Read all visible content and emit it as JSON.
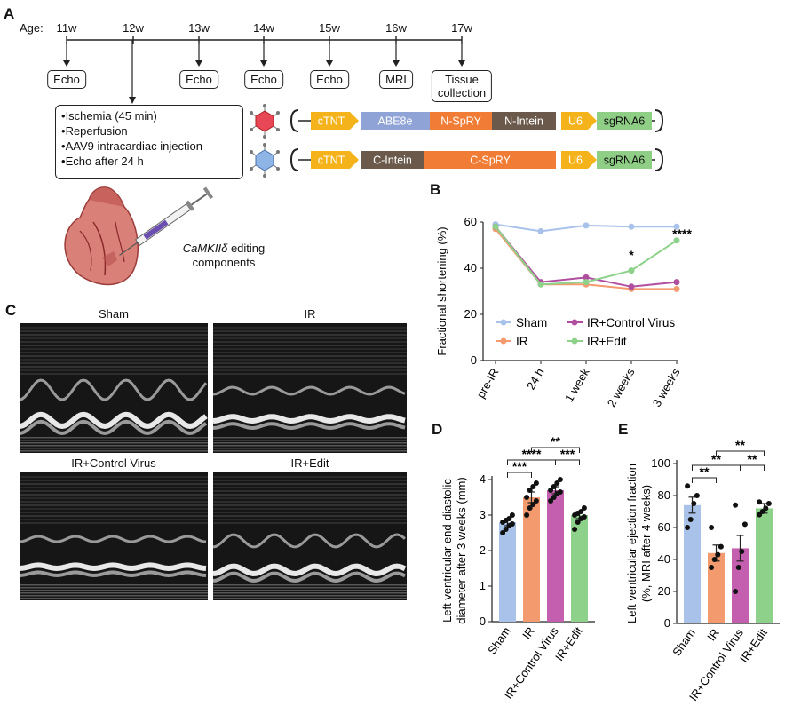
{
  "panels": {
    "a": "A",
    "b": "B",
    "c": "C",
    "d": "D",
    "e": "E"
  },
  "timeline": {
    "age_label": "Age:",
    "weeks": [
      "11w",
      "12w",
      "13w",
      "14w",
      "15w",
      "16w",
      "17w"
    ],
    "events": [
      "Echo",
      "Echo",
      "Echo",
      "Echo",
      "MRI",
      "Tissue\ncollection"
    ],
    "procedures": [
      "Ischemia (45 min)",
      "Reperfusion",
      "AAV9 intracardiac injection",
      "Echo after 24 h"
    ]
  },
  "constructs": {
    "top": [
      "cTNT",
      "ABE8e",
      "N-SpRY",
      "N-Intein",
      "U6",
      "sgRNA6"
    ],
    "bottom": [
      "cTNT",
      "C-Intein",
      "C-SpRY",
      "U6",
      "sgRNA6"
    ],
    "colors": {
      "promoter": "#f5b31b",
      "abe": "#8fa3d6",
      "spry": "#f07c35",
      "intein": "#6b5a4c",
      "sgrna": "#8fcf85"
    }
  },
  "heart_label": {
    "gene": "CaMKIIδ",
    "text": " editing",
    "line2": "components"
  },
  "echo": {
    "titles": [
      "Sham",
      "IR",
      "IR+Control Virus",
      "IR+Edit"
    ]
  },
  "chart_data": [
    {
      "type": "line",
      "panel": "B",
      "ylabel": "Fractional shortening (%)",
      "x": [
        "pre-IR",
        "24 h",
        "1 week",
        "2 weeks",
        "3 weeks"
      ],
      "ylim": [
        0,
        60
      ],
      "yticks": [
        0,
        20,
        40,
        60
      ],
      "series": [
        {
          "name": "Sham",
          "color": "#a9c2ea",
          "values": [
            59,
            56,
            58.5,
            58,
            58
          ]
        },
        {
          "name": "IR",
          "color": "#f39a6f",
          "values": [
            57,
            33,
            33,
            31,
            31
          ]
        },
        {
          "name": "IR+Control Virus",
          "color": "#b04fa0",
          "values": [
            58,
            34,
            36,
            32,
            34
          ]
        },
        {
          "name": "IR+Edit",
          "color": "#8dd18a",
          "values": [
            58,
            33,
            34,
            39,
            52
          ]
        }
      ],
      "annotations": [
        {
          "x": "2 weeks",
          "text": "*"
        },
        {
          "x": "3 weeks",
          "text": "****"
        }
      ]
    },
    {
      "type": "bar",
      "panel": "D",
      "ylabel_line1": "Left ventricular end-diastolic",
      "ylabel_line2": "diameter after 3 weeks (mm)",
      "categories": [
        "Sham",
        "IR",
        "IR+Control Virus",
        "IR+Edit"
      ],
      "values": [
        2.8,
        3.5,
        3.7,
        3.0
      ],
      "errors": [
        0.1,
        0.15,
        0.1,
        0.1
      ],
      "colors": [
        "#a9c2ea",
        "#f39a6f",
        "#c45fb0",
        "#8dd18a"
      ],
      "points": [
        [
          2.5,
          2.6,
          2.7,
          2.75,
          2.8,
          2.85,
          2.9,
          3.0
        ],
        [
          3.0,
          3.2,
          3.3,
          3.4,
          3.5,
          3.7,
          3.8,
          3.9
        ],
        [
          3.4,
          3.5,
          3.6,
          3.65,
          3.7,
          3.8,
          3.9,
          4.0
        ],
        [
          2.6,
          2.8,
          2.9,
          2.95,
          3.0,
          3.05,
          3.1,
          3.2
        ]
      ],
      "ylim": [
        0,
        4
      ],
      "yticks": [
        0,
        1,
        2,
        3,
        4
      ],
      "significance": [
        {
          "from": 0,
          "to": 1,
          "text": "***"
        },
        {
          "from": 0,
          "to": 2,
          "text": "****"
        },
        {
          "from": 2,
          "to": 3,
          "text": "***"
        },
        {
          "from": 1,
          "to": 3,
          "text": "**"
        }
      ]
    },
    {
      "type": "bar",
      "panel": "E",
      "ylabel_line1": "Left ventricular ejection fraction",
      "ylabel_line2": "(%, MRI after 4 weeks)",
      "categories": [
        "Sham",
        "IR",
        "IR+Control Virus",
        "IR+Edit"
      ],
      "values": [
        74,
        44,
        47,
        72
      ],
      "errors": [
        5,
        5,
        8,
        3
      ],
      "colors": [
        "#a9c2ea",
        "#f39a6f",
        "#c45fb0",
        "#8dd18a"
      ],
      "points": [
        [
          60,
          65,
          75,
          80,
          86
        ],
        [
          35,
          40,
          43,
          48,
          60
        ],
        [
          20,
          35,
          45,
          62,
          74
        ],
        [
          68,
          70,
          72,
          75,
          76
        ]
      ],
      "ylim": [
        0,
        100
      ],
      "yticks": [
        0,
        20,
        40,
        60,
        80,
        100
      ],
      "significance": [
        {
          "from": 0,
          "to": 1,
          "text": "**"
        },
        {
          "from": 0,
          "to": 2,
          "text": "**"
        },
        {
          "from": 2,
          "to": 3,
          "text": "**"
        },
        {
          "from": 1,
          "to": 3,
          "text": "**"
        }
      ]
    }
  ]
}
